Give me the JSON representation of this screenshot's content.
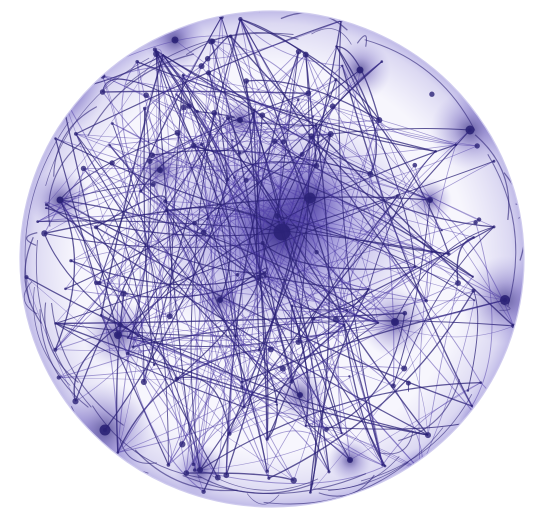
{
  "image": {
    "subject": "network-sphere",
    "colors": {
      "background": "#ffffff",
      "ink_dark": "#2b2277",
      "ink_mid": "#4b3aa6",
      "ink_light": "#8d84d6",
      "glow": "#6f63c9"
    }
  }
}
